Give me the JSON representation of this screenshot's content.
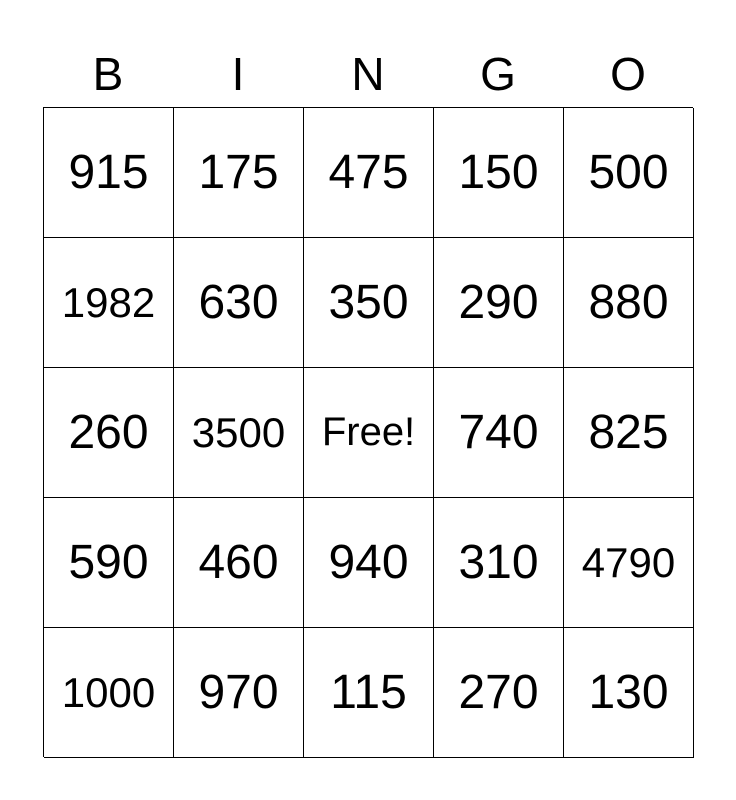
{
  "header": [
    "B",
    "I",
    "N",
    "G",
    "O"
  ],
  "rows": [
    [
      "915",
      "175",
      "475",
      "150",
      "500"
    ],
    [
      "1982",
      "630",
      "350",
      "290",
      "880"
    ],
    [
      "260",
      "3500",
      "Free!",
      "740",
      "825"
    ],
    [
      "590",
      "460",
      "940",
      "310",
      "4790"
    ],
    [
      "1000",
      "970",
      "115",
      "270",
      "130"
    ]
  ]
}
